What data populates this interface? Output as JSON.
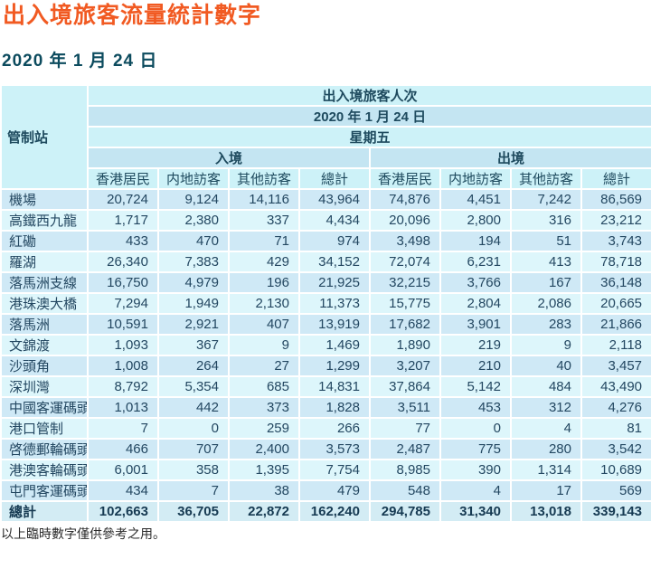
{
  "page": {
    "title": "出入境旅客流量統計數字",
    "date_line": "2020 年 1 月 24 日",
    "footnote": "以上臨時數字僅供參考之用。"
  },
  "colors": {
    "title_orange": "#f15a22",
    "heading_teal": "#0c4b5e",
    "header_pale": "#cdf2f8",
    "header_blue": "#c4e5f2",
    "row_blue": "#cfe9f6",
    "row_light": "#ddf6fb",
    "total_row_bg": "#d3ecf4",
    "table_border": "#6fcede",
    "text_dark": "#234761"
  },
  "table": {
    "corner_header": "管制站",
    "banner_header": "出入境旅客人次",
    "date_header": "2020 年 1 月 24 日",
    "weekday_header": "星期五",
    "direction_headers": [
      "入境",
      "出境"
    ],
    "sub_headers": [
      "香港居民",
      "内地訪客",
      "其他訪客",
      "總計"
    ],
    "rows": [
      {
        "station": "機場",
        "values": [
          "20,724",
          "9,124",
          "14,116",
          "43,964",
          "74,876",
          "4,451",
          "7,242",
          "86,569"
        ]
      },
      {
        "station": "高鐵西九龍",
        "values": [
          "1,717",
          "2,380",
          "337",
          "4,434",
          "20,096",
          "2,800",
          "316",
          "23,212"
        ]
      },
      {
        "station": "紅磡",
        "values": [
          "433",
          "470",
          "71",
          "974",
          "3,498",
          "194",
          "51",
          "3,743"
        ]
      },
      {
        "station": "羅湖",
        "values": [
          "26,340",
          "7,383",
          "429",
          "34,152",
          "72,074",
          "6,231",
          "413",
          "78,718"
        ]
      },
      {
        "station": "落馬洲支線",
        "values": [
          "16,750",
          "4,979",
          "196",
          "21,925",
          "32,215",
          "3,766",
          "167",
          "36,148"
        ]
      },
      {
        "station": "港珠澳大橋",
        "values": [
          "7,294",
          "1,949",
          "2,130",
          "11,373",
          "15,775",
          "2,804",
          "2,086",
          "20,665"
        ]
      },
      {
        "station": "落馬洲",
        "values": [
          "10,591",
          "2,921",
          "407",
          "13,919",
          "17,682",
          "3,901",
          "283",
          "21,866"
        ]
      },
      {
        "station": "文錦渡",
        "values": [
          "1,093",
          "367",
          "9",
          "1,469",
          "1,890",
          "219",
          "9",
          "2,118"
        ]
      },
      {
        "station": "沙頭角",
        "values": [
          "1,008",
          "264",
          "27",
          "1,299",
          "3,207",
          "210",
          "40",
          "3,457"
        ]
      },
      {
        "station": "深圳灣",
        "values": [
          "8,792",
          "5,354",
          "685",
          "14,831",
          "37,864",
          "5,142",
          "484",
          "43,490"
        ]
      },
      {
        "station": "中國客運碼頭",
        "values": [
          "1,013",
          "442",
          "373",
          "1,828",
          "3,511",
          "453",
          "312",
          "4,276"
        ]
      },
      {
        "station": "港口管制",
        "values": [
          "7",
          "0",
          "259",
          "266",
          "77",
          "0",
          "4",
          "81"
        ]
      },
      {
        "station": "啓德郵輪碼頭",
        "values": [
          "466",
          "707",
          "2,400",
          "3,573",
          "2,487",
          "775",
          "280",
          "3,542"
        ]
      },
      {
        "station": "港澳客輪碼頭",
        "values": [
          "6,001",
          "358",
          "1,395",
          "7,754",
          "8,985",
          "390",
          "1,314",
          "10,689"
        ]
      },
      {
        "station": "屯門客運碼頭",
        "values": [
          "434",
          "7",
          "38",
          "479",
          "548",
          "4",
          "17",
          "569"
        ]
      }
    ],
    "total_row": {
      "station": "總計",
      "values": [
        "102,663",
        "36,705",
        "22,872",
        "162,240",
        "294,785",
        "31,340",
        "13,018",
        "339,143"
      ]
    }
  }
}
